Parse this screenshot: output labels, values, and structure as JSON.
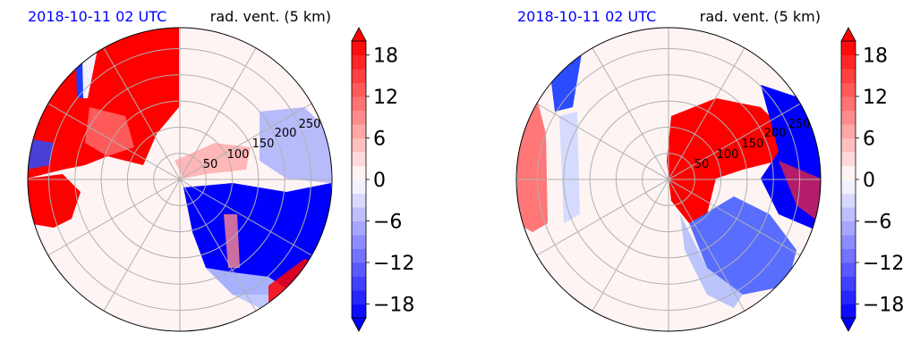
{
  "chart_data": [
    {
      "type": "heatmap",
      "projection": "polar",
      "title_left": "2018-10-11 02 UTC",
      "title_right": "rad. vent. (5 km)",
      "range_rings": [
        50,
        100,
        150,
        200,
        250
      ],
      "range_max": 290,
      "colormap": "bwr",
      "colorbar": {
        "ticks": [
          18,
          12,
          6,
          0,
          -6,
          -12,
          -18
        ],
        "tick_labels": [
          "18",
          "12",
          "6",
          "0",
          "−6",
          "−12",
          "−18"
        ],
        "vmin": -20,
        "vmax": 20,
        "extend": "both"
      },
      "regions": [
        {
          "sign": "positive",
          "sector": "north-west",
          "description_value": 20
        },
        {
          "sign": "positive",
          "sector": "west",
          "description_value": 20
        },
        {
          "sign": "negative",
          "sector": "south-east",
          "description_value": -20
        },
        {
          "sign": "negative",
          "sector": "east",
          "description_value": -10
        }
      ]
    },
    {
      "type": "heatmap",
      "projection": "polar",
      "title_left": "2018-10-11 02 UTC",
      "title_right": "rad. vent. (5 km)",
      "range_rings": [
        50,
        100,
        150,
        200,
        250
      ],
      "range_max": 290,
      "colormap": "bwr",
      "colorbar": {
        "ticks": [
          18,
          12,
          6,
          0,
          -6,
          -12,
          -18
        ],
        "tick_labels": [
          "18",
          "12",
          "6",
          "0",
          "−6",
          "−12",
          "−18"
        ],
        "vmin": -20,
        "vmax": 20,
        "extend": "both"
      },
      "regions": [
        {
          "sign": "positive",
          "sector": "north-east",
          "description_value": 20
        },
        {
          "sign": "negative",
          "sector": "east",
          "description_value": -20
        },
        {
          "sign": "negative",
          "sector": "south-east",
          "description_value": -15
        },
        {
          "sign": "positive",
          "sector": "far-west",
          "description_value": 10
        },
        {
          "sign": "negative",
          "sector": "north-west",
          "description_value": -20
        }
      ]
    }
  ],
  "colors": {
    "pos_max": "#ff0000",
    "neg_max": "#0000ff",
    "neutral": "#fff4f4",
    "grid": "#b0b0b0",
    "title_blue": "#0000ff"
  }
}
